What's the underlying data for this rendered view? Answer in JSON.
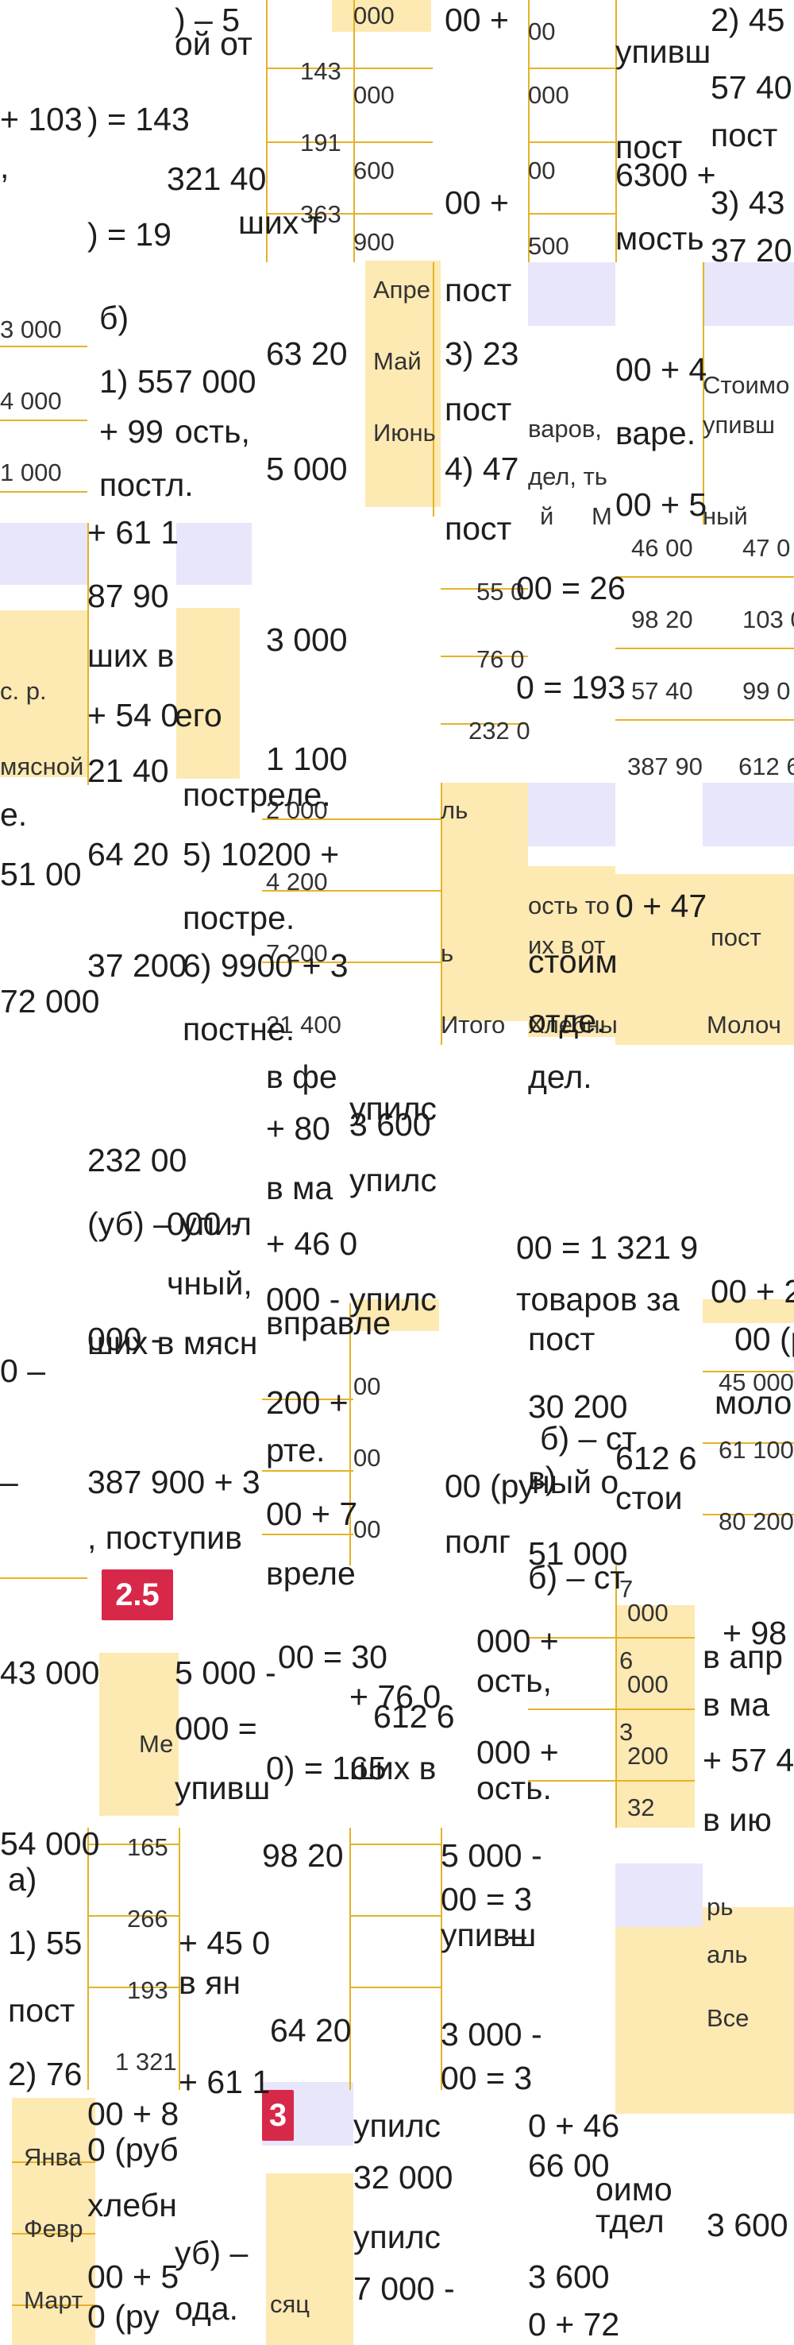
{
  "text_fragments": [
    ") – 5",
    "ой от",
    "+ 103",
    ") = 143",
    ",",
    "321 40",
    ") = 19",
    "ших т",
    "б)",
    "1) 55",
    "7 000",
    "+ 99",
    "ость,",
    "постл.",
    "+ 61 1",
    "87 90",
    "ших в",
    "+ 54 0",
    "его",
    "21 40",
    "е.",
    "51 00",
    "64 20",
    "37 200",
    "72 000",
    "00 +",
    "00 +",
    "упивш",
    "пост",
    "6300 +",
    "мость",
    "2) 45",
    "57 40",
    "пост",
    "3) 43",
    "37 20",
    "пост",
    "3) 23",
    "пост",
    "4) 47",
    "пост",
    "00 + 4",
    "варе.",
    "00 + 5",
    "63 20",
    "5 000",
    "3 000",
    "1 100",
    "постреле.",
    "5) 10200 +",
    "постре.",
    "6) 9900 + 3",
    "постне.",
    "00 = 26",
    "0 = 193",
    "0 + 47",
    "стоим",
    "отде.",
    "дел.",
    "в фе",
    "+ 80",
    "в ма",
    "+ 46 0",
    "000 -",
    "232 00",
    "000 -",
    "(уб) – упил",
    "чный,",
    "000 -",
    "ших в мясн",
    "0 –",
    "– ",
    "387 900 + 3",
    ", поступив",
    "вправле",
    "200 +",
    "рте.",
    "00 + 7",
    "вреле",
    "упилс",
    "3 600",
    "упилс",
    "упилс",
    "00 = 1 321 9",
    "товаров за",
    "пост",
    "30 200",
    "б) – ст",
    "в)",
    "ный о",
    "612 6",
    "стои",
    "51 000",
    "б) – ст",
    "00 (ру",
    "полг",
    "00 + 2",
    "00 (р",
    "моло",
    "43 000",
    "54 000",
    "а)",
    "1) 55",
    "пост",
    "2) 76",
    "5 000 -",
    "000 =",
    "упивш",
    "00 = 30",
    "+ 76 0",
    "612 6",
    "0) = 165",
    "ших в",
    "000 +",
    "ость,",
    "000 +",
    "ость.",
    "в апр",
    "+ 98",
    "в ма",
    "+ 57 4",
    "в ию",
    "98 20",
    "+ 45 0",
    "в ян",
    "64 20",
    "+ 61 1",
    "5 000 -",
    "00 = 3",
    "упивш",
    "–",
    "3 000 -",
    "00 = 3",
    "00 + 8",
    "0 (руб",
    "хлебн",
    "00 + 5",
    "0 (ру",
    "уб) –",
    "ода.",
    "упилс",
    "32 000",
    "упилс",
    "7 000 -",
    "упилс",
    "0 + 46",
    "66 00",
    "оимо",
    "тдел",
    "3 600",
    "3 600",
    "0 + 72",
    "оимо"
  ],
  "table_cells": [
    "000",
    "00",
    "143",
    "000",
    "000",
    "191",
    "600",
    "00",
    "363",
    "900",
    "500",
    "3 000",
    "4 000",
    "1 000",
    "Апре",
    "Май",
    "Июнь",
    "55 0",
    "76 0",
    "232 0",
    "46 00",
    "47 0",
    "98 20",
    "103 0",
    "57 40",
    "99 0",
    "387 90",
    "612 6",
    "с. р.",
    "мясной",
    "2 000",
    "4 200",
    "7 200",
    "21 400",
    "ль",
    "ь",
    "Итого",
    "варов,",
    "дел, ть",
    "й",
    "М",
    "Стоимо",
    "упивш",
    "ный",
    "Хлебны",
    "Молоч",
    "ость то",
    "их в от",
    "пост",
    "00",
    "00",
    "00",
    "45 000",
    "61 100",
    "80 200",
    "7",
    "000",
    "6",
    "000",
    "3",
    "200",
    "32",
    "Ме",
    "165",
    "266",
    "193",
    "1 321",
    "рь",
    "аль",
    "Все",
    "Янва",
    "Февр",
    "Март",
    "сяц"
  ],
  "badges": [
    "2.5",
    "3"
  ],
  "colors": {
    "table_fill": "#fde9b2",
    "table_line": "#e5b227",
    "header_fill": "#e8e6fb",
    "badge": "#d7284a"
  }
}
